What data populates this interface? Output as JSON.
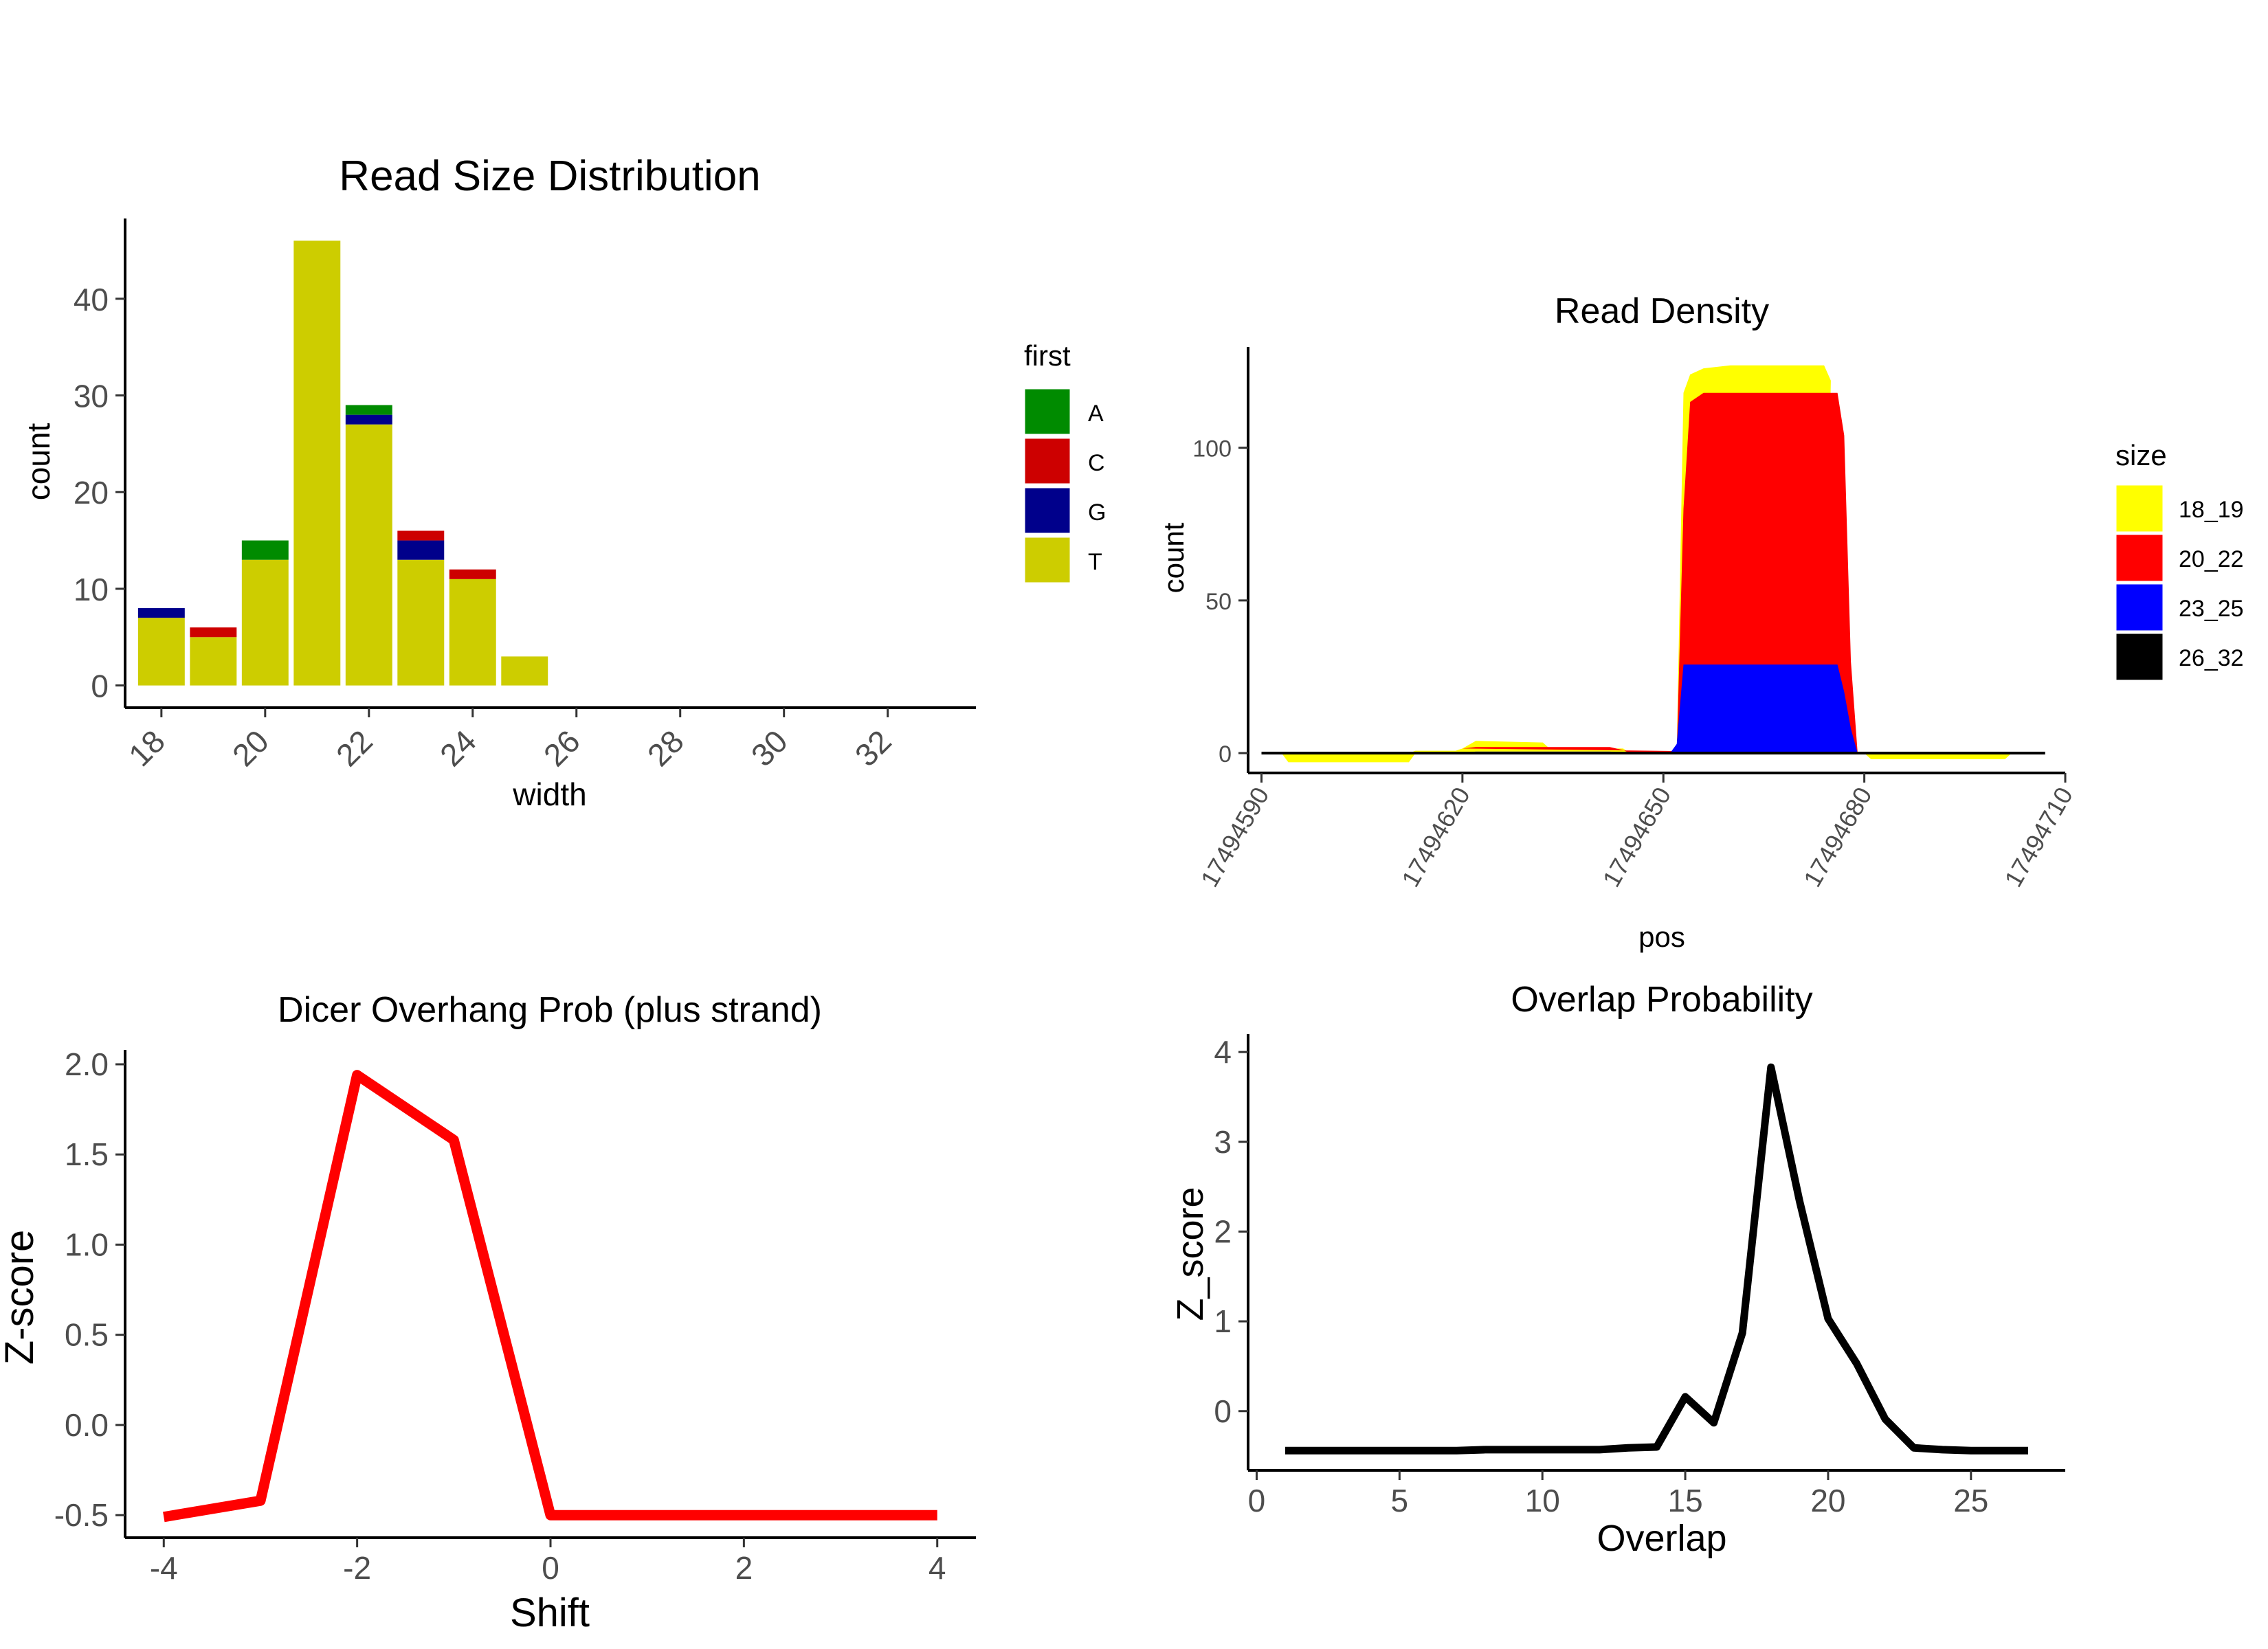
{
  "chart_data": [
    {
      "id": "p1",
      "type": "bar",
      "stacked": true,
      "title": "Read Size Distribution",
      "xlabel": "width",
      "ylabel": "count",
      "xlim": [
        17.3,
        33.7
      ],
      "ylim": [
        -2.3,
        48.3
      ],
      "xticks": [
        18,
        20,
        22,
        24,
        26,
        28,
        30,
        32
      ],
      "yticks": [
        0,
        10,
        20,
        30,
        40
      ],
      "categories": [
        18,
        19,
        20,
        21,
        22,
        23,
        24,
        25
      ],
      "series": [
        {
          "name": "T",
          "color": "#CDCD00",
          "values": [
            7,
            5,
            13,
            46,
            27,
            13,
            11,
            3
          ]
        },
        {
          "name": "G",
          "color": "#00008B",
          "values": [
            1,
            0,
            0,
            0,
            1,
            2,
            0,
            0
          ]
        },
        {
          "name": "C",
          "color": "#CD0000",
          "values": [
            0,
            1,
            0,
            0,
            0,
            1,
            1,
            0
          ]
        },
        {
          "name": "A",
          "color": "#008B00",
          "values": [
            0,
            0,
            2,
            0,
            1,
            0,
            0,
            0
          ]
        }
      ],
      "legend": {
        "title": "first",
        "entries": [
          "A",
          "C",
          "G",
          "T"
        ],
        "placement": "right"
      }
    },
    {
      "id": "p2",
      "type": "area",
      "stacked": true,
      "title": "Read Density",
      "xlabel": "pos",
      "ylabel": "count",
      "xlim": [
        17494588,
        17494710
      ],
      "ylim": [
        -6.5,
        133
      ],
      "xticks": [
        17494590,
        17494620,
        17494650,
        17494680,
        17494710
      ],
      "xtick_labels": [
        "17494590",
        "17494620",
        "17494650",
        "17494680",
        "17494710"
      ],
      "yticks": [
        0,
        50,
        100
      ],
      "baseline": {
        "x_start": 17494590,
        "x_end": 17494707,
        "y": 0,
        "color": "#000000"
      },
      "series": [
        {
          "name": "18_19",
          "color": "#FFFF00",
          "points": [
            [
              17494593,
              0
            ],
            [
              17494594,
              -3
            ],
            [
              17494612,
              -3
            ],
            [
              17494613,
              0
            ],
            [
              17494612,
              0
            ],
            [
              17494613,
              0.8
            ],
            [
              17494619,
              0.8
            ],
            [
              17494620,
              1.5
            ],
            [
              17494622,
              4
            ],
            [
              17494632,
              3.5
            ],
            [
              17494633,
              1.5
            ],
            [
              17494644,
              1.5
            ],
            [
              17494645,
              0
            ],
            [
              17494652,
              0
            ],
            [
              17494653,
              118
            ],
            [
              17494654,
              124
            ],
            [
              17494656,
              126
            ],
            [
              17494660,
              127
            ],
            [
              17494674,
              127
            ],
            [
              17494675,
              122
            ],
            [
              17494674,
              0
            ],
            [
              17494680,
              0
            ],
            [
              17494681,
              -2
            ],
            [
              17494701,
              -2
            ],
            [
              17494702,
              0
            ]
          ]
        },
        {
          "name": "20_22",
          "color": "#FF0000",
          "points": [
            [
              17494620,
              1.5
            ],
            [
              17494622,
              2
            ],
            [
              17494642,
              2
            ],
            [
              17494644,
              1
            ],
            [
              17494645,
              0
            ],
            [
              17494652,
              0
            ],
            [
              17494653,
              80
            ],
            [
              17494654,
              115
            ],
            [
              17494656,
              118
            ],
            [
              17494676,
              118
            ],
            [
              17494677,
              104
            ],
            [
              17494678,
              30
            ],
            [
              17494679,
              0
            ]
          ]
        },
        {
          "name": "23_25",
          "color": "#0000FF",
          "points": [
            [
              17494620,
              0.2
            ],
            [
              17494622,
              0.5
            ],
            [
              17494642,
              0.5
            ],
            [
              17494645,
              0
            ],
            [
              17494651,
              0
            ],
            [
              17494652,
              3
            ],
            [
              17494653,
              29
            ],
            [
              17494676,
              29
            ],
            [
              17494677,
              20
            ],
            [
              17494678,
              8
            ],
            [
              17494679,
              0
            ]
          ]
        },
        {
          "name": "26_32",
          "color": "#000000",
          "points": []
        }
      ],
      "legend": {
        "title": "size",
        "entries": [
          "18_19",
          "20_22",
          "23_25",
          "26_32"
        ],
        "placement": "right"
      }
    },
    {
      "id": "p3",
      "type": "line",
      "title": "Dicer Overhang Prob (plus strand)",
      "xlabel": "Shift",
      "ylabel": "Z-score",
      "xlim": [
        -4.4,
        4.4
      ],
      "ylim": [
        -0.625,
        2.08
      ],
      "xticks": [
        -4,
        -2,
        0,
        2,
        4
      ],
      "yticks": [
        -0.5,
        0.0,
        0.5,
        1.0,
        1.5,
        2.0
      ],
      "ytick_labels": [
        "-0.5",
        "0.0",
        "0.5",
        "1.0",
        "1.5",
        "2.0"
      ],
      "series": [
        {
          "name": "plus",
          "color": "#FF0000",
          "x": [
            -4,
            -3,
            -2,
            -1,
            0,
            1,
            2,
            3,
            4
          ],
          "y": [
            -0.51,
            -0.42,
            1.94,
            1.58,
            -0.5,
            -0.5,
            -0.5,
            -0.5,
            -0.5
          ]
        }
      ]
    },
    {
      "id": "p4",
      "type": "line",
      "title": "Overlap Probability",
      "xlabel": "Overlap",
      "ylabel": "Z_score",
      "xlim": [
        -0.3,
        28.3
      ],
      "ylim": [
        -0.66,
        4.2
      ],
      "xticks": [
        0,
        5,
        10,
        15,
        20,
        25
      ],
      "yticks": [
        0,
        1,
        2,
        3,
        4
      ],
      "series": [
        {
          "name": "overlap",
          "color": "#000000",
          "x": [
            1,
            2,
            3,
            4,
            5,
            6,
            7,
            8,
            9,
            10,
            11,
            12,
            13,
            14,
            15,
            16,
            17,
            18,
            19,
            20,
            21,
            22,
            23,
            24,
            25,
            26,
            27
          ],
          "y": [
            -0.44,
            -0.44,
            -0.44,
            -0.44,
            -0.44,
            -0.44,
            -0.44,
            -0.43,
            -0.43,
            -0.43,
            -0.43,
            -0.43,
            -0.41,
            -0.4,
            0.16,
            -0.13,
            0.87,
            3.83,
            2.34,
            1.03,
            0.53,
            -0.09,
            -0.41,
            -0.43,
            -0.44,
            -0.44,
            -0.44
          ]
        }
      ]
    }
  ]
}
